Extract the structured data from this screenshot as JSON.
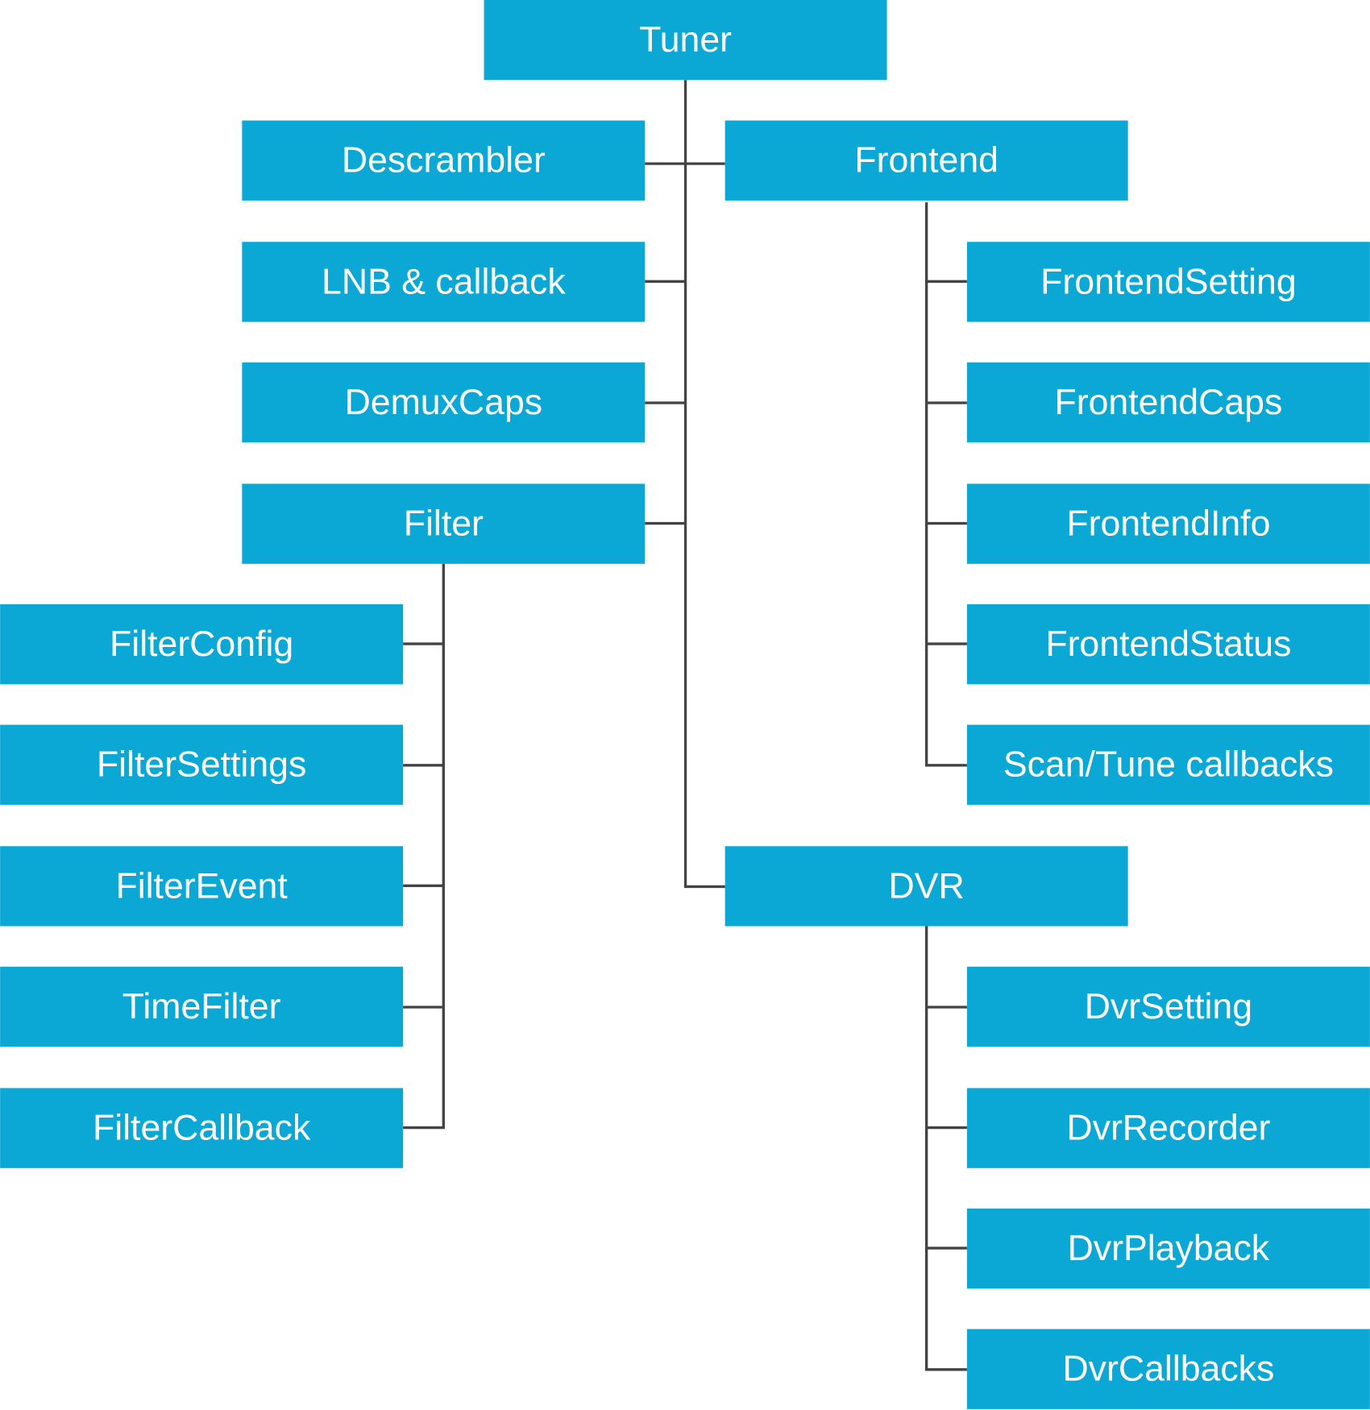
{
  "nodes": [
    {
      "label": "Tuner"
    },
    {
      "label": "Descrambler"
    },
    {
      "label": "Frontend"
    },
    {
      "label": "LNB & callback"
    },
    {
      "label": "DemuxCaps"
    },
    {
      "label": "Filter"
    },
    {
      "label": "FilterConfig"
    },
    {
      "label": "FilterSettings"
    },
    {
      "label": "FilterEvent"
    },
    {
      "label": "TimeFilter"
    },
    {
      "label": "FilterCallback"
    },
    {
      "label": "FrontendSetting"
    },
    {
      "label": "FrontendCaps"
    },
    {
      "label": "FrontendInfo"
    },
    {
      "label": "FrontendStatus"
    },
    {
      "label": "Scan/Tune callbacks"
    },
    {
      "label": "DVR"
    },
    {
      "label": "DvrSetting"
    },
    {
      "label": "DvrRecorder"
    },
    {
      "label": "DvrPlayback"
    },
    {
      "label": "DvrCallbacks"
    }
  ]
}
